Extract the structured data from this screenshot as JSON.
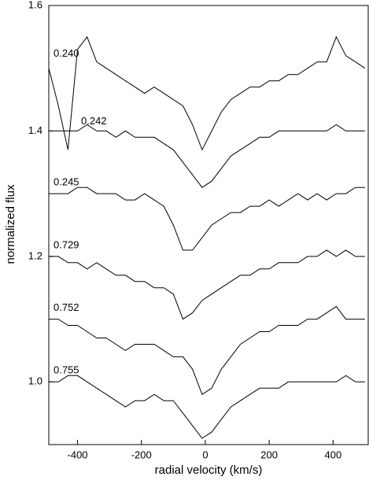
{
  "chart_data": {
    "type": "line",
    "x_label": "radial velocity (km/s)",
    "y_label": "normalized flux",
    "x": [
      -490,
      -460,
      -430,
      -400,
      -370,
      -340,
      -310,
      -280,
      -250,
      -220,
      -190,
      -160,
      -130,
      -100,
      -70,
      -40,
      -10,
      20,
      50,
      80,
      110,
      140,
      170,
      200,
      230,
      260,
      290,
      320,
      350,
      380,
      410,
      440,
      470,
      500
    ],
    "series": [
      {
        "name": "0.240",
        "color": "#000000",
        "values": [
          1.5,
          1.44,
          1.37,
          1.53,
          1.55,
          1.51,
          1.5,
          1.49,
          1.48,
          1.47,
          1.46,
          1.47,
          1.46,
          1.45,
          1.44,
          1.41,
          1.37,
          1.4,
          1.43,
          1.45,
          1.46,
          1.47,
          1.47,
          1.48,
          1.48,
          1.49,
          1.49,
          1.5,
          1.51,
          1.51,
          1.55,
          1.52,
          1.51,
          1.5
        ]
      },
      {
        "name": "0.242",
        "color": "#000000",
        "values": [
          1.4,
          1.4,
          1.4,
          1.4,
          1.41,
          1.4,
          1.4,
          1.39,
          1.4,
          1.39,
          1.39,
          1.39,
          1.38,
          1.37,
          1.35,
          1.33,
          1.31,
          1.32,
          1.34,
          1.36,
          1.37,
          1.38,
          1.39,
          1.39,
          1.4,
          1.4,
          1.4,
          1.4,
          1.4,
          1.4,
          1.41,
          1.4,
          1.4,
          1.4
        ]
      },
      {
        "name": "0.245",
        "color": "#000000",
        "values": [
          1.3,
          1.3,
          1.3,
          1.31,
          1.31,
          1.3,
          1.3,
          1.3,
          1.29,
          1.29,
          1.3,
          1.29,
          1.28,
          1.25,
          1.21,
          1.21,
          1.23,
          1.25,
          1.26,
          1.27,
          1.27,
          1.28,
          1.28,
          1.29,
          1.28,
          1.29,
          1.3,
          1.29,
          1.3,
          1.29,
          1.3,
          1.3,
          1.31,
          1.31
        ]
      },
      {
        "name": "0.729",
        "color": "#000000",
        "values": [
          1.2,
          1.2,
          1.19,
          1.19,
          1.18,
          1.19,
          1.18,
          1.17,
          1.17,
          1.16,
          1.16,
          1.15,
          1.15,
          1.14,
          1.1,
          1.11,
          1.13,
          1.14,
          1.15,
          1.16,
          1.17,
          1.17,
          1.18,
          1.18,
          1.19,
          1.19,
          1.19,
          1.2,
          1.2,
          1.21,
          1.2,
          1.21,
          1.2,
          1.2
        ]
      },
      {
        "name": "0.752",
        "color": "#000000",
        "values": [
          1.1,
          1.1,
          1.09,
          1.09,
          1.08,
          1.07,
          1.07,
          1.06,
          1.05,
          1.06,
          1.06,
          1.06,
          1.05,
          1.04,
          1.04,
          1.02,
          0.98,
          0.99,
          1.02,
          1.04,
          1.06,
          1.07,
          1.08,
          1.08,
          1.09,
          1.09,
          1.09,
          1.1,
          1.1,
          1.11,
          1.12,
          1.1,
          1.1,
          1.1
        ]
      },
      {
        "name": "0.755",
        "color": "#000000",
        "values": [
          1.0,
          1.0,
          1.01,
          1.01,
          1.0,
          0.99,
          0.98,
          0.97,
          0.96,
          0.97,
          0.97,
          0.98,
          0.97,
          0.97,
          0.95,
          0.93,
          0.91,
          0.92,
          0.94,
          0.96,
          0.97,
          0.98,
          0.99,
          0.99,
          0.99,
          1.0,
          1.0,
          1.0,
          1.0,
          1.0,
          1.0,
          1.01,
          1.0,
          1.0
        ]
      }
    ],
    "xlim": [
      -490,
      510
    ],
    "ylim": [
      0.9,
      1.6
    ],
    "xticks": [
      -400,
      -200,
      0,
      200,
      400
    ],
    "yticks": [
      {
        "value": 1,
        "label": "1.0"
      },
      1.2,
      1.4,
      1.6
    ]
  }
}
